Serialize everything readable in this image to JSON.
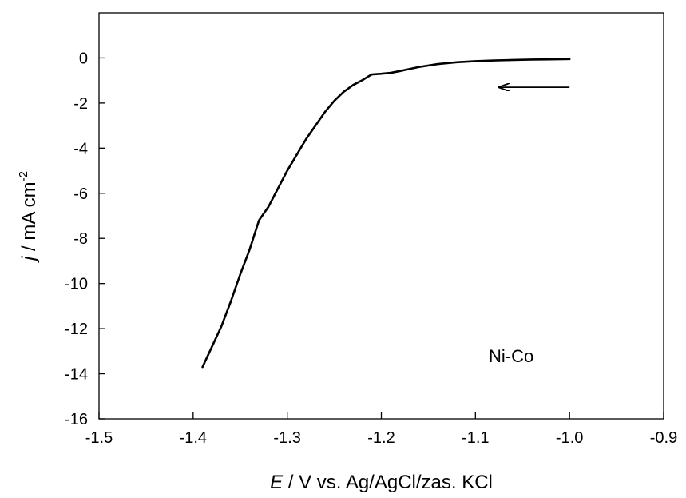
{
  "chart_data": {
    "type": "line",
    "title": "",
    "xlabel": {
      "italic": "E",
      "rest": " / V vs. Ag/AgCl/zas. KCl"
    },
    "ylabel": {
      "italic": "j",
      "rest": " / mA cm",
      "sup": "-2"
    },
    "xlim": [
      -1.5,
      -0.9
    ],
    "ylim": [
      -16,
      2
    ],
    "x_ticks": [
      "-1.5",
      "-1.4",
      "-1.3",
      "-1.2",
      "-1.1",
      "-1.0",
      "-0.9"
    ],
    "y_ticks": [
      "0",
      "-2",
      "-4",
      "-6",
      "-8",
      "-10",
      "-12",
      "-14",
      "-16"
    ],
    "grid": false,
    "annotation": "Ni-Co",
    "scan_direction": "toward negative potential (arrow pointing left)",
    "series": [
      {
        "color": "#000000",
        "x": [
          -1.0,
          -1.02,
          -1.04,
          -1.06,
          -1.08,
          -1.1,
          -1.12,
          -1.14,
          -1.16,
          -1.17,
          -1.18,
          -1.19,
          -1.2,
          -1.21,
          -1.215,
          -1.22,
          -1.23,
          -1.24,
          -1.25,
          -1.26,
          -1.27,
          -1.28,
          -1.29,
          -1.3,
          -1.31,
          -1.32,
          -1.33,
          -1.34,
          -1.35,
          -1.36,
          -1.37,
          -1.38,
          -1.39
        ],
        "y": [
          -0.05,
          -0.06,
          -0.07,
          -0.09,
          -0.11,
          -0.14,
          -0.19,
          -0.27,
          -0.4,
          -0.49,
          -0.58,
          -0.66,
          -0.7,
          -0.73,
          -0.85,
          -0.98,
          -1.2,
          -1.5,
          -1.9,
          -2.4,
          -3.0,
          -3.6,
          -4.3,
          -5.0,
          -5.8,
          -6.6,
          -7.2,
          -8.5,
          -9.6,
          -10.8,
          -11.9,
          -12.8,
          -13.7
        ]
      }
    ],
    "arrow": {
      "x_from": -1.0,
      "x_to": -1.075,
      "y": -1.3
    }
  }
}
